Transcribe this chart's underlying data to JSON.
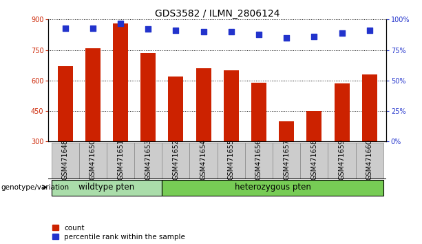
{
  "title": "GDS3582 / ILMN_2806124",
  "samples": [
    "GSM471648",
    "GSM471650",
    "GSM471651",
    "GSM471653",
    "GSM471652",
    "GSM471654",
    "GSM471655",
    "GSM471656",
    "GSM471657",
    "GSM471658",
    "GSM471659",
    "GSM471660"
  ],
  "counts": [
    670,
    760,
    880,
    735,
    620,
    660,
    650,
    590,
    400,
    450,
    585,
    630
  ],
  "percentiles": [
    93,
    93,
    97,
    92,
    91,
    90,
    90,
    88,
    85,
    86,
    89,
    91
  ],
  "ylim_left": [
    300,
    900
  ],
  "ylim_right": [
    0,
    100
  ],
  "yticks_left": [
    300,
    450,
    600,
    750,
    900
  ],
  "yticks_right": [
    0,
    25,
    50,
    75,
    100
  ],
  "hlines": [
    750,
    600,
    450
  ],
  "bar_color": "#cc2200",
  "dot_color": "#2233cc",
  "wildtype_label": "wildtype pten",
  "heterozygous_label": "heterozygous pten",
  "wildtype_color": "#aaddaa",
  "heterozygous_color": "#77cc55",
  "group_label": "genotype/variation",
  "legend_count": "count",
  "legend_percentile": "percentile rank within the sample",
  "title_fontsize": 10,
  "tick_fontsize": 7,
  "bar_width": 0.55,
  "dot_size": 35,
  "xtick_box_color": "#cccccc",
  "n_wildtype": 4,
  "n_heterozygous": 8
}
